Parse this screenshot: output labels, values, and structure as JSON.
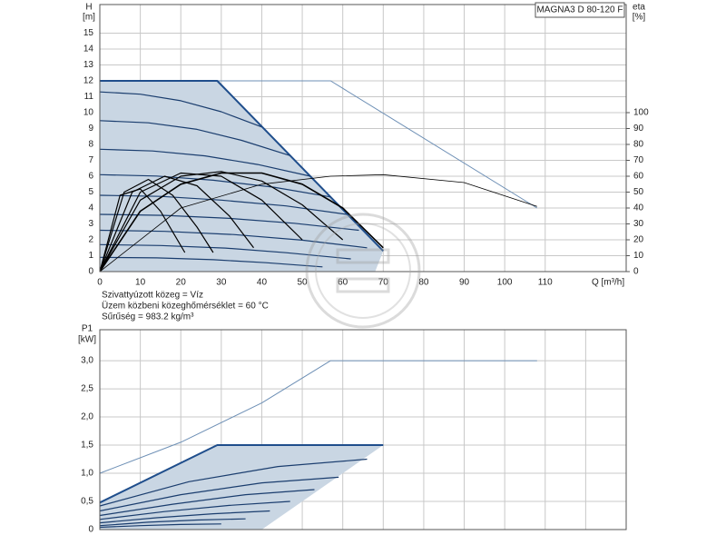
{
  "chart_data": [
    {
      "type": "line",
      "title": "MAGNA3 D 80-120 F",
      "ylabel": "H",
      "yunit": "[m]",
      "y2label": "eta",
      "y2unit": "[%]",
      "xlabel": "Q [m³/h]",
      "notes": [
        "Szivattyúzott közeg = Víz",
        "Üzem közbeni közeghőmérséklet = 60 °C",
        "Sűrűség = 983.2 kg/m³"
      ],
      "xlim": [
        0,
        130
      ],
      "xticks": [
        0,
        10,
        20,
        30,
        40,
        50,
        60,
        70,
        80,
        90,
        100,
        110
      ],
      "xtick_labels": true,
      "ylim": [
        0,
        16.8
      ],
      "yticks": [
        0,
        1,
        2,
        3,
        4,
        5,
        6,
        7,
        8,
        9,
        10,
        11,
        12,
        13,
        14,
        15
      ],
      "y2lim": [
        0,
        168
      ],
      "y2ticks": [
        0,
        10,
        20,
        30,
        40,
        50,
        60,
        70,
        80,
        90,
        100
      ],
      "grid": true,
      "series": [
        {
          "fill": "#c9d6e3",
          "color": "#c9d6e3",
          "line_width": 0,
          "x": [
            0,
            29,
            70,
            68,
            0
          ],
          "values": [
            12,
            12,
            1.3,
            0,
            0
          ]
        },
        {
          "color": "#6d8fb5",
          "line_width": 1,
          "x": [
            29,
            57,
            108
          ],
          "values": [
            12,
            12,
            4
          ]
        },
        {
          "color": "#1f4e8c",
          "line_width": 2,
          "x": [
            0,
            29,
            70
          ],
          "values": [
            12,
            12,
            1.3
          ]
        },
        {
          "color": "#1a3d6e",
          "line_width": 1.2,
          "x": [
            0,
            10,
            20,
            30,
            40
          ],
          "values": [
            11.3,
            11.16,
            10.75,
            10.06,
            9.1
          ]
        },
        {
          "color": "#1a3d6e",
          "line_width": 1.2,
          "x": [
            0,
            12,
            24,
            35,
            47
          ],
          "values": [
            9.5,
            9.36,
            8.95,
            8.26,
            7.3
          ]
        },
        {
          "color": "#1a3d6e",
          "line_width": 1.2,
          "x": [
            0,
            13,
            26,
            39,
            52
          ],
          "values": [
            7.7,
            7.59,
            7.28,
            6.74,
            6.0
          ]
        },
        {
          "color": "#1a3d6e",
          "line_width": 1.2,
          "x": [
            0,
            14,
            28,
            43,
            57
          ],
          "values": [
            6.1,
            6.01,
            5.75,
            5.31,
            4.7
          ]
        },
        {
          "color": "#1a3d6e",
          "line_width": 1.2,
          "x": [
            0,
            15,
            30,
            46,
            61
          ],
          "values": [
            4.8,
            4.73,
            4.5,
            4.13,
            3.6
          ]
        },
        {
          "color": "#1a3d6e",
          "line_width": 1.2,
          "x": [
            0,
            16,
            32,
            48,
            64
          ],
          "values": [
            3.6,
            3.54,
            3.35,
            3.04,
            2.6
          ]
        },
        {
          "color": "#1a3d6e",
          "line_width": 1.2,
          "x": [
            0,
            16,
            33,
            50,
            66
          ],
          "values": [
            2.6,
            2.53,
            2.33,
            1.98,
            1.5
          ]
        },
        {
          "color": "#1a3d6e",
          "line_width": 1.2,
          "x": [
            0,
            15,
            31,
            46,
            62
          ],
          "values": [
            1.7,
            1.64,
            1.48,
            1.19,
            0.8
          ]
        },
        {
          "color": "#1a3d6e",
          "line_width": 1.2,
          "x": [
            0,
            14,
            28,
            41,
            55
          ],
          "values": [
            0.9,
            0.86,
            0.75,
            0.56,
            0.3
          ]
        },
        {
          "color": "#000000",
          "line_width": 0.8,
          "axis": "y2",
          "x": [
            0,
            20,
            40,
            57,
            70,
            90,
            108
          ],
          "values": [
            0,
            40,
            55,
            60,
            61,
            56,
            41
          ]
        },
        {
          "color": "#000000",
          "line_width": 1.6,
          "axis": "y2",
          "x": [
            0,
            10,
            20,
            30,
            40,
            50,
            60,
            70
          ],
          "values": [
            0,
            38,
            55,
            62,
            62,
            55,
            40,
            15
          ]
        },
        {
          "color": "#000000",
          "line_width": 1.2,
          "axis": "y2",
          "x": [
            0,
            10,
            20,
            30,
            40,
            50,
            60
          ],
          "values": [
            0,
            45,
            60,
            63,
            57,
            42,
            20
          ]
        },
        {
          "color": "#000000",
          "line_width": 1.2,
          "axis": "y2",
          "x": [
            0,
            10,
            20,
            30,
            40,
            50
          ],
          "values": [
            0,
            50,
            62,
            60,
            45,
            20
          ]
        },
        {
          "color": "#000000",
          "line_width": 1.2,
          "axis": "y2",
          "x": [
            0,
            8,
            16,
            24,
            32,
            38
          ],
          "values": [
            0,
            50,
            60,
            54,
            35,
            15
          ]
        },
        {
          "color": "#000000",
          "line_width": 1.2,
          "axis": "y2",
          "x": [
            0,
            6,
            12,
            18,
            24,
            28
          ],
          "values": [
            0,
            50,
            58,
            48,
            28,
            12
          ]
        },
        {
          "color": "#000000",
          "line_width": 1.2,
          "axis": "y2",
          "x": [
            0,
            5,
            10,
            15,
            21
          ],
          "values": [
            0,
            48,
            52,
            38,
            12
          ]
        }
      ]
    },
    {
      "type": "line",
      "ylabel": "P1",
      "yunit": "[kW]",
      "xlim": [
        0,
        130
      ],
      "xticks": [
        0,
        10,
        20,
        30,
        40,
        50,
        60,
        70,
        80,
        90,
        100,
        110,
        120
      ],
      "xtick_labels": false,
      "ylim": [
        0,
        3.55
      ],
      "yticks": [
        0,
        {
          "value": 0.5,
          "label": "0,5"
        },
        {
          "value": 1,
          "label": "1,0"
        },
        {
          "value": 1.5,
          "label": "1,5"
        },
        {
          "value": 2,
          "label": "2,0"
        },
        {
          "value": 2.5,
          "label": "2,5"
        },
        {
          "value": 3,
          "label": "3,0"
        }
      ],
      "grid": true,
      "series": [
        {
          "fill": "#c9d6e3",
          "color": "#c9d6e3",
          "line_width": 0,
          "x": [
            0,
            29,
            70,
            40,
            0
          ],
          "values": [
            0.48,
            1.5,
            1.5,
            0,
            0
          ]
        },
        {
          "color": "#6d8fb5",
          "line_width": 1,
          "x": [
            0,
            20,
            40,
            57,
            108
          ],
          "values": [
            1.0,
            1.55,
            2.25,
            3.0,
            3.0
          ]
        },
        {
          "color": "#1f4e8c",
          "line_width": 2,
          "x": [
            0,
            29,
            70
          ],
          "values": [
            0.48,
            1.5,
            1.5
          ]
        },
        {
          "color": "#1a3d6e",
          "line_width": 1.2,
          "x": [
            0,
            22,
            44,
            66
          ],
          "values": [
            0.42,
            0.85,
            1.12,
            1.25
          ]
        },
        {
          "color": "#1a3d6e",
          "line_width": 1.2,
          "x": [
            0,
            20,
            40,
            59
          ],
          "values": [
            0.33,
            0.62,
            0.83,
            0.93
          ]
        },
        {
          "color": "#1a3d6e",
          "line_width": 1.2,
          "x": [
            0,
            18,
            36,
            53
          ],
          "values": [
            0.25,
            0.45,
            0.62,
            0.71
          ]
        },
        {
          "color": "#1a3d6e",
          "line_width": 1.2,
          "x": [
            0,
            16,
            32,
            47
          ],
          "values": [
            0.18,
            0.32,
            0.43,
            0.5
          ]
        },
        {
          "color": "#1a3d6e",
          "line_width": 1.2,
          "x": [
            0,
            14,
            28,
            42
          ],
          "values": [
            0.12,
            0.21,
            0.28,
            0.33
          ]
        },
        {
          "color": "#1a3d6e",
          "line_width": 1.2,
          "x": [
            0,
            12,
            24,
            36
          ],
          "values": [
            0.07,
            0.13,
            0.17,
            0.19
          ]
        },
        {
          "color": "#1a3d6e",
          "line_width": 1.2,
          "x": [
            0,
            10,
            20,
            30
          ],
          "values": [
            0.04,
            0.07,
            0.09,
            0.1
          ]
        }
      ]
    }
  ]
}
